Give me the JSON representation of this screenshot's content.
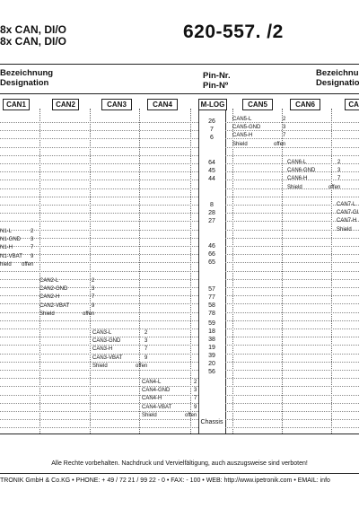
{
  "header": {
    "title_line1": "8x CAN, DI/O",
    "title_line2": "8x CAN, DI/O",
    "part_number": "620-557. /2"
  },
  "columns": {
    "left_de": "Bezeichnung",
    "left_en": "Designation",
    "pin_de": "Pin-Nr.",
    "pin_en": "Pin-Nº",
    "right_de": "Bezeichnung",
    "right_en": "Designation"
  },
  "tabs": [
    "CAN1",
    "CAN2",
    "CAN3",
    "CAN4",
    "M-LOG",
    "CAN5",
    "CAN6",
    "CAN"
  ],
  "pins": [
    [
      "26",
      "7",
      "6"
    ],
    [
      "64",
      "45",
      "44"
    ],
    [
      "8",
      "28",
      "27"
    ],
    [
      "46",
      "66",
      "65"
    ],
    [
      "57",
      "77",
      "58",
      "78"
    ],
    [
      "59",
      "18",
      "38",
      "19",
      "39",
      "20",
      "56"
    ],
    [
      "Chassis"
    ]
  ],
  "can_blocks": [
    {
      "id": "can1",
      "rows": [
        [
          "N1-L",
          "2"
        ],
        [
          "N1-GND",
          "3"
        ],
        [
          "N1-H",
          "7"
        ],
        [
          "N1-VBAT",
          "9"
        ],
        [
          "hield",
          "offen"
        ]
      ]
    },
    {
      "id": "can2",
      "rows": [
        [
          "CAN2-L",
          "2"
        ],
        [
          "CAN2-GND",
          "3"
        ],
        [
          "CAN2-H",
          "7"
        ],
        [
          "CAN2-VBAT",
          "9"
        ],
        [
          "Shield",
          "offen"
        ]
      ]
    },
    {
      "id": "can3",
      "rows": [
        [
          "CAN3-L",
          "2"
        ],
        [
          "CAN3-GND",
          "3"
        ],
        [
          "CAN3-H",
          "7"
        ],
        [
          "CAN3-VBAT",
          "9"
        ],
        [
          "Shield",
          "offen"
        ]
      ]
    },
    {
      "id": "can4",
      "rows": [
        [
          "CAN4-L",
          "2"
        ],
        [
          "CAN4-GND",
          "3"
        ],
        [
          "CAN4-H",
          "7"
        ],
        [
          "CAN4-VBAT",
          "9"
        ],
        [
          "Shield",
          "offen"
        ]
      ]
    },
    {
      "id": "can5",
      "rows": [
        [
          "CAN5-L",
          "2"
        ],
        [
          "CAN5-GND",
          "3"
        ],
        [
          "CAN5-H",
          "7"
        ],
        [
          "Shield",
          "offen"
        ]
      ]
    },
    {
      "id": "can6",
      "rows": [
        [
          "CAN6-L",
          "2"
        ],
        [
          "CAN6-GND",
          "3"
        ],
        [
          "CAN6-H",
          "7"
        ],
        [
          "Shield",
          "offen"
        ]
      ]
    },
    {
      "id": "can7",
      "rows": [
        [
          "CAN7-L",
          ""
        ],
        [
          "CAN7-GI",
          ""
        ],
        [
          "CAN7-H",
          ""
        ],
        [
          "Shield",
          ""
        ]
      ]
    }
  ],
  "footer": {
    "rights": "Alle Rechte vorbehalten. Nachdruck und Vervielfältigung, auch auszugsweise sind verboten!",
    "address": "TRONIK GmbH & Co.KG  •  PHONE: + 49  / 72 21 / 99 22 - 0  •  FAX: - 100  •  WEB: http://www.ipetronik.com  •  EMAIL: info"
  }
}
